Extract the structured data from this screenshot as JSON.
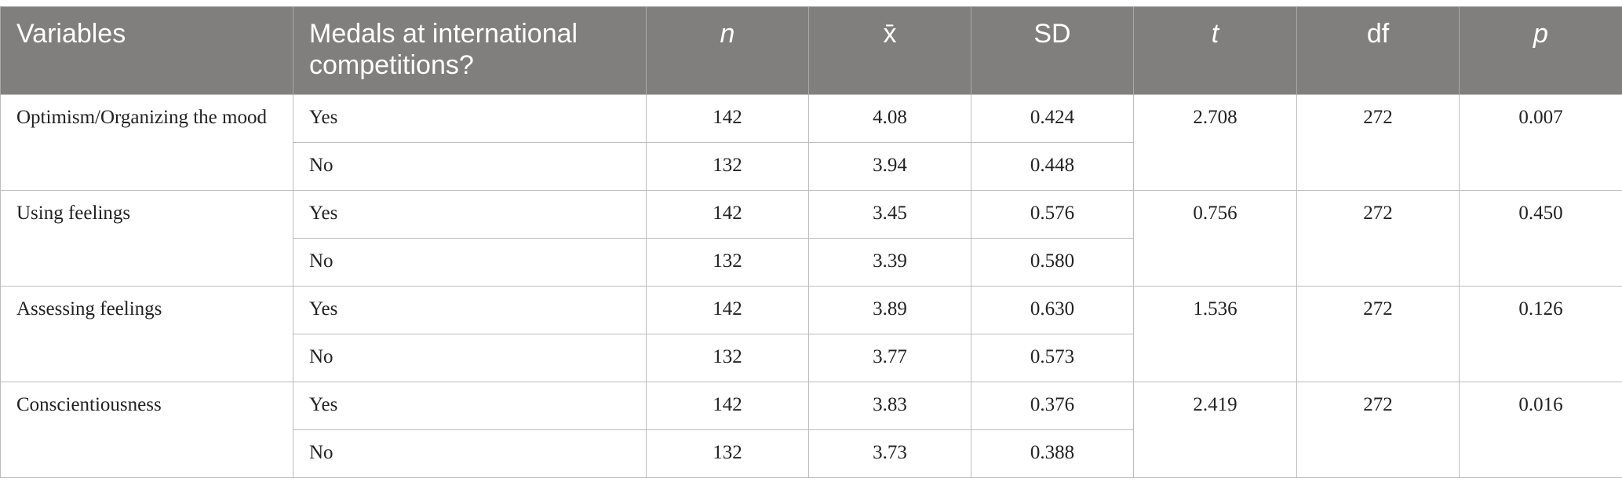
{
  "table": {
    "headers": [
      "Variables",
      "Medals at international competitions?",
      "n",
      "x̄",
      "SD",
      "t",
      "df",
      "p"
    ],
    "rows": [
      {
        "variable": "Optimism/Organizing the mood",
        "t": "2.708",
        "df": "272",
        "p": "0.007",
        "groups": [
          {
            "medals": "Yes",
            "n": "142",
            "mean": "4.08",
            "sd": "0.424"
          },
          {
            "medals": "No",
            "n": "132",
            "mean": "3.94",
            "sd": "0.448"
          }
        ]
      },
      {
        "variable": "Using feelings",
        "t": "0.756",
        "df": "272",
        "p": "0.450",
        "groups": [
          {
            "medals": "Yes",
            "n": "142",
            "mean": "3.45",
            "sd": "0.576"
          },
          {
            "medals": "No",
            "n": "132",
            "mean": "3.39",
            "sd": "0.580"
          }
        ]
      },
      {
        "variable": "Assessing feelings",
        "t": "1.536",
        "df": "272",
        "p": "0.126",
        "groups": [
          {
            "medals": "Yes",
            "n": "142",
            "mean": "3.89",
            "sd": "0.630"
          },
          {
            "medals": "No",
            "n": "132",
            "mean": "3.77",
            "sd": "0.573"
          }
        ]
      },
      {
        "variable": "Conscientiousness",
        "t": "2.419",
        "df": "272",
        "p": "0.016",
        "groups": [
          {
            "medals": "Yes",
            "n": "142",
            "mean": "3.83",
            "sd": "0.376"
          },
          {
            "medals": "No",
            "n": "132",
            "mean": "3.73",
            "sd": "0.388"
          }
        ]
      }
    ]
  }
}
